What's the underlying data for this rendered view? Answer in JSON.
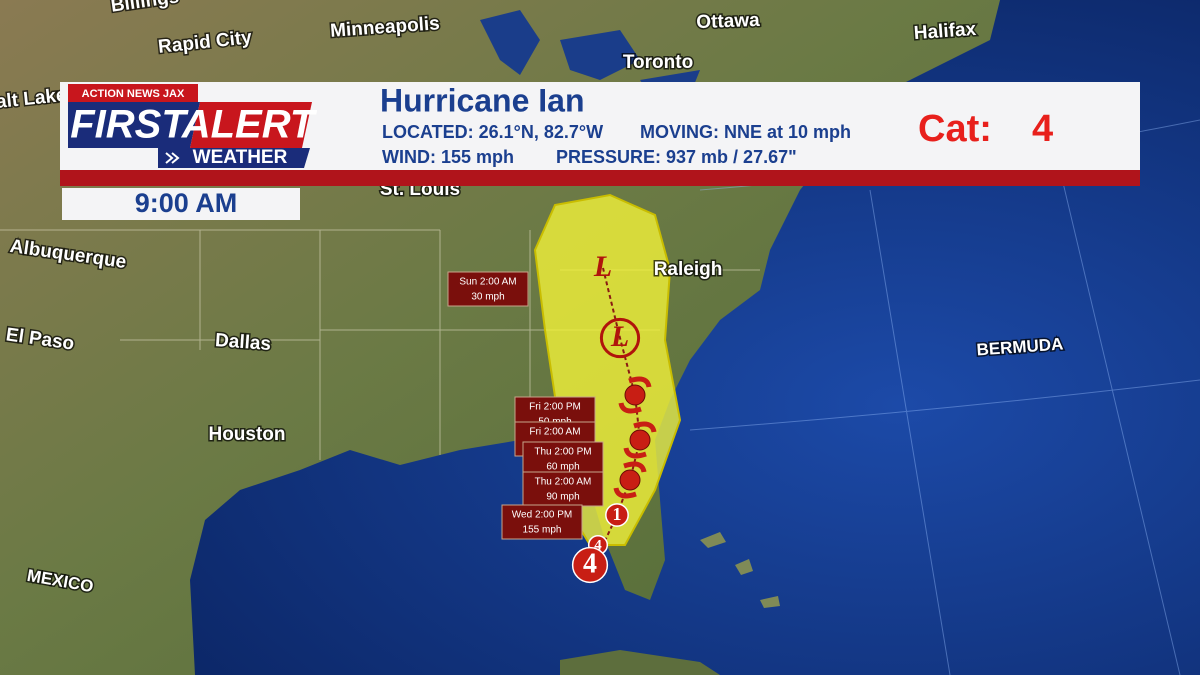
{
  "header": {
    "logo_top": "ACTION NEWS JAX",
    "logo_first": "FIRST",
    "logo_alert": "ALERT",
    "logo_weather": "WEATHER",
    "title": "Hurricane Ian",
    "located": "LOCATED: 26.1°N, 82.7°W",
    "moving": "MOVING: NNE at 10 mph",
    "wind": "WIND: 155 mph",
    "pressure": "PRESSURE:  937 mb / 27.67\"",
    "category_label": "Cat:",
    "category": "4",
    "time": "9:00 AM"
  },
  "places": [
    {
      "label": "Billings"
    },
    {
      "label": "Rapid City"
    },
    {
      "label": "Minneapolis"
    },
    {
      "label": "Ottawa"
    },
    {
      "label": "Toronto"
    },
    {
      "label": "Halifax"
    },
    {
      "label": "Salt Lake"
    },
    {
      "label": "St. Louis"
    },
    {
      "label": "Albuquerque"
    },
    {
      "label": "Raleigh"
    },
    {
      "label": "El Paso"
    },
    {
      "label": "Dallas"
    },
    {
      "label": "Houston"
    },
    {
      "label": "BERMUDA"
    },
    {
      "label": "MEXICO"
    }
  ],
  "forecast_points": [
    {
      "time": "Sun 2:00 AM",
      "wind": "30 mph"
    },
    {
      "time": "Fri 2:00 PM",
      "wind": "50 mph"
    },
    {
      "time": "Fri 2:00 AM",
      "wind": "50 mph"
    },
    {
      "time": "Thu 2:00 PM",
      "wind": "60 mph"
    },
    {
      "time": "Thu 2:00 AM",
      "wind": "90 mph"
    },
    {
      "time": "Wed 2:00 PM",
      "wind": "155 mph"
    }
  ],
  "track_symbols": [
    {
      "label": "L"
    },
    {
      "label": "L"
    },
    {
      "label": "1"
    },
    {
      "label": "4"
    },
    {
      "label": "4"
    }
  ]
}
